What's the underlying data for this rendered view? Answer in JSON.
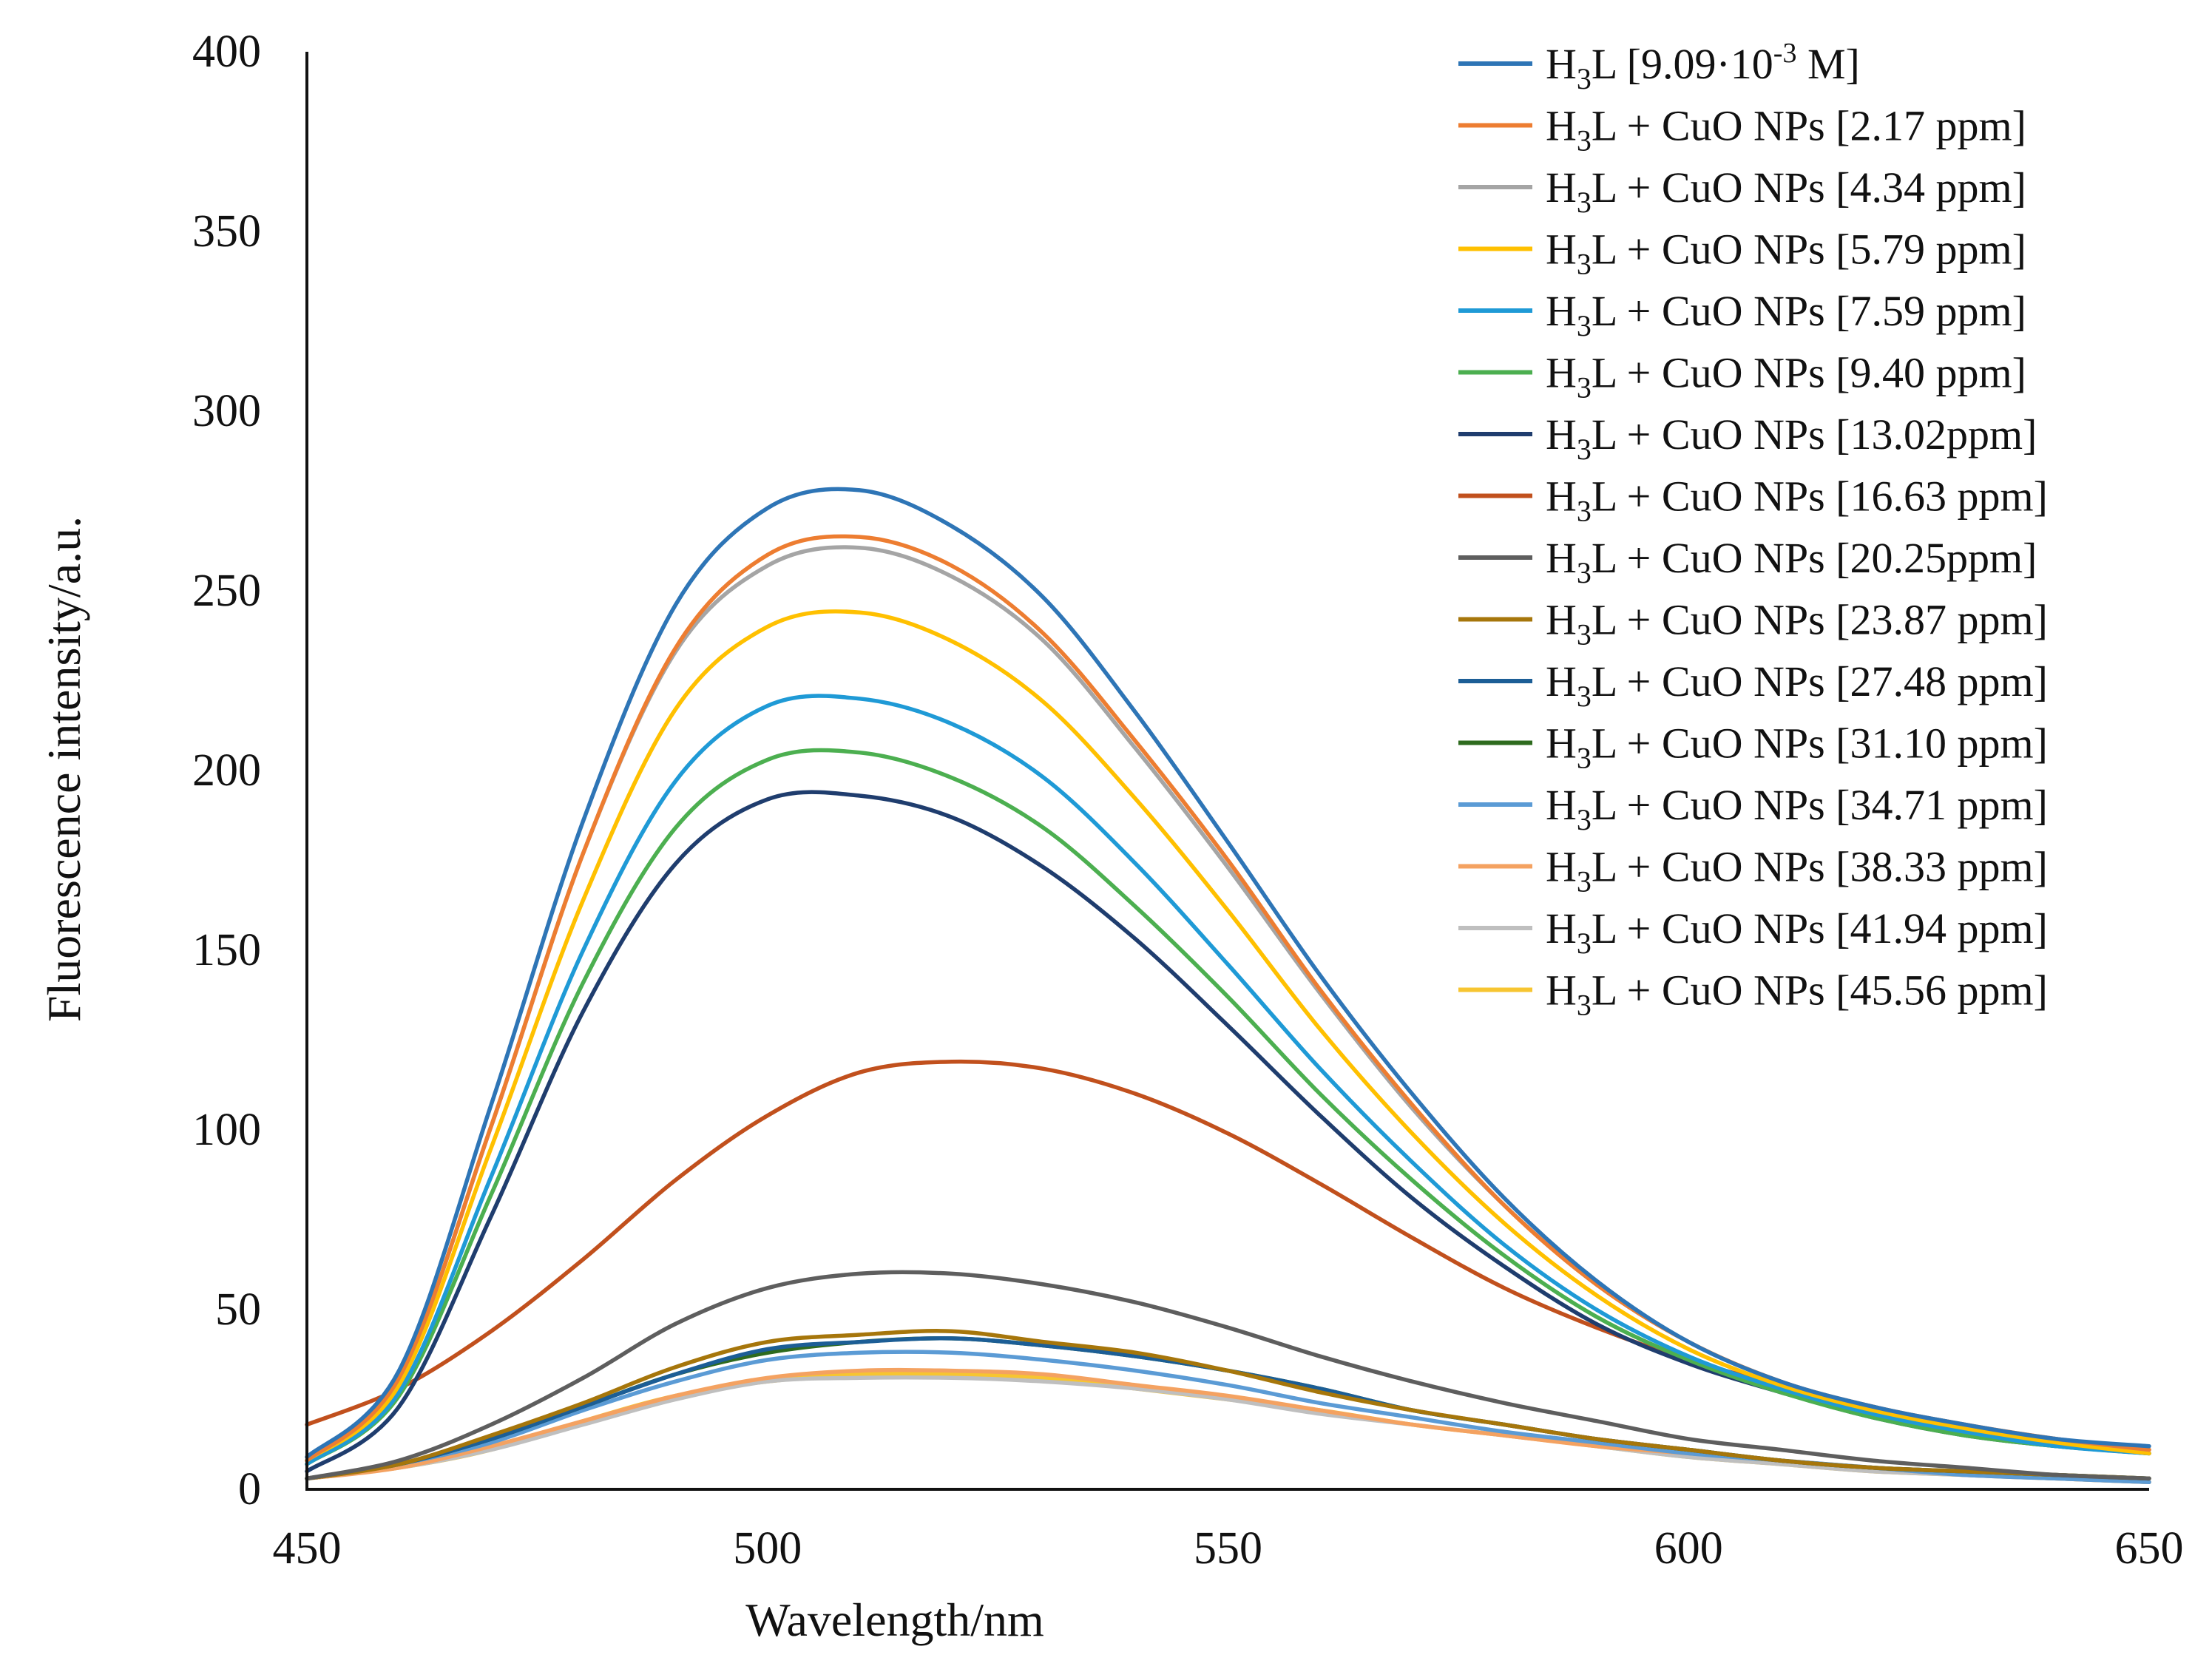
{
  "chart_data": {
    "type": "line",
    "title": "",
    "xlabel": "Wavelength/nm",
    "ylabel": "Fluorescence intensity/a.u.",
    "xlim": [
      450,
      650
    ],
    "ylim": [
      0,
      400
    ],
    "xticks": [
      450,
      500,
      550,
      600,
      650
    ],
    "yticks": [
      0,
      50,
      100,
      150,
      200,
      250,
      300,
      350,
      400
    ],
    "grid": false,
    "legend_position": "top-right",
    "x": [
      450,
      460,
      470,
      480,
      490,
      500,
      510,
      520,
      530,
      540,
      550,
      560,
      570,
      580,
      590,
      600,
      610,
      620,
      630,
      640,
      650
    ],
    "series": [
      {
        "name": "H3L [9.09·10-3 M]",
        "label_parts": [
          "H",
          "3",
          "L [9.09·10",
          "-3",
          " M]"
        ],
        "color": "#2E75B6",
        "values": [
          9,
          33,
          107,
          186,
          246,
          273,
          278,
          268,
          248,
          216,
          180,
          143,
          110,
          81,
          58,
          41,
          30,
          23,
          18,
          14,
          12
        ]
      },
      {
        "name": "H3L + CuO NPs [2.17 ppm]",
        "label_parts": [
          "H",
          "3",
          "L + CuO NPs [2.17 ppm]",
          "",
          ""
        ],
        "color": "#ED7D31",
        "values": [
          8,
          31,
          101,
          177,
          234,
          260,
          265,
          257,
          238,
          208,
          175,
          139,
          107,
          79,
          57,
          41,
          30,
          23,
          18,
          14,
          11
        ]
      },
      {
        "name": "H3L + CuO NPs [4.34 ppm]",
        "label_parts": [
          "H",
          "3",
          "L + CuO NPs [4.34 ppm]",
          "",
          ""
        ],
        "color": "#A5A5A5",
        "values": [
          8,
          31,
          101,
          177,
          233,
          257,
          262,
          254,
          236,
          206,
          173,
          138,
          106,
          79,
          57,
          41,
          30,
          23,
          18,
          14,
          11
        ]
      },
      {
        "name": "H3L + CuO NPs [5.79 ppm]",
        "label_parts": [
          "H",
          "3",
          "L + CuO NPs [5.79 ppm]",
          "",
          ""
        ],
        "color": "#FFC000",
        "values": [
          8,
          29,
          95,
          164,
          217,
          240,
          244,
          236,
          219,
          192,
          161,
          128,
          99,
          74,
          54,
          39,
          29,
          22,
          17,
          13,
          10
        ]
      },
      {
        "name": "H3L + CuO NPs [7.59 ppm]",
        "label_parts": [
          "H",
          "3",
          "L + CuO NPs [7.59 ppm]",
          "",
          ""
        ],
        "color": "#1F9AD6",
        "values": [
          7,
          27,
          87,
          150,
          197,
          218,
          220,
          213,
          198,
          174,
          146,
          117,
          91,
          68,
          50,
          37,
          28,
          21,
          16,
          12,
          10
        ]
      },
      {
        "name": "H3L + CuO NPs [9.40 ppm]",
        "label_parts": [
          "H",
          "3",
          "L + CuO NPs [9.40 ppm]",
          "",
          ""
        ],
        "color": "#4CAF50",
        "values": [
          7,
          26,
          82,
          141,
          184,
          203,
          205,
          198,
          184,
          162,
          137,
          110,
          86,
          65,
          48,
          36,
          27,
          20,
          15,
          12,
          10
        ]
      },
      {
        "name": "H3L + CuO NPs [13.02ppm]",
        "label_parts": [
          "H",
          "3",
          "L + CuO NPs [13.02ppm]",
          "",
          ""
        ],
        "color": "#1F3D6E",
        "values": [
          5,
          23,
          76,
          133,
          174,
          192,
          193,
          187,
          173,
          153,
          129,
          104,
          81,
          62,
          46,
          35,
          27,
          20,
          15,
          12,
          10
        ]
      },
      {
        "name": "H3L + CuO NPs [16.63 ppm]",
        "label_parts": [
          "H",
          "3",
          "L + CuO NPs [16.63 ppm]",
          "",
          ""
        ],
        "color": "#C1501D",
        "values": [
          18,
          28,
          44,
          64,
          86,
          104,
          116,
          119,
          117,
          110,
          99,
          85,
          70,
          56,
          45,
          36,
          29,
          23,
          17,
          13,
          10
        ]
      },
      {
        "name": "H3L + CuO NPs [20.25ppm]",
        "label_parts": [
          "H",
          "3",
          "L + CuO NPs [20.25ppm]",
          "",
          ""
        ],
        "color": "#5E5E5E",
        "values": [
          3,
          8,
          18,
          31,
          46,
          56,
          60,
          60,
          57,
          52,
          45,
          37,
          30,
          24,
          19,
          14,
          11,
          8,
          6,
          4,
          3
        ]
      },
      {
        "name": "H3L + CuO NPs [23.87 ppm]",
        "label_parts": [
          "H",
          "3",
          "L + CuO NPs [23.87 ppm]",
          "",
          ""
        ],
        "color": "#A6760B",
        "values": [
          3,
          7,
          15,
          24,
          34,
          41,
          43,
          44,
          41,
          38,
          33,
          27,
          22,
          18,
          14,
          11,
          8,
          6,
          5,
          4,
          3
        ]
      },
      {
        "name": "H3L + CuO NPs [27.48 ppm]",
        "label_parts": [
          "H",
          "3",
          "L + CuO NPs [27.48 ppm]",
          "",
          ""
        ],
        "color": "#1C5E96",
        "values": [
          3,
          7,
          14,
          23,
          32,
          39,
          41,
          42,
          40,
          37,
          33,
          28,
          22,
          18,
          14,
          11,
          8,
          6,
          5,
          4,
          3
        ]
      },
      {
        "name": "H3L + CuO NPs [31.10 ppm]",
        "label_parts": [
          "H",
          "3",
          "L + CuO NPs [31.10 ppm]",
          "",
          ""
        ],
        "color": "#2E6B1E",
        "values": [
          3,
          7,
          14,
          23,
          32,
          38,
          41,
          42,
          40,
          37,
          33,
          28,
          22,
          18,
          14,
          11,
          8,
          6,
          5,
          4,
          3
        ]
      },
      {
        "name": "H3L + CuO NPs [34.71 ppm]",
        "label_parts": [
          "H",
          "3",
          "L + CuO NPs [34.71 ppm]",
          "",
          ""
        ],
        "color": "#5B9BD5",
        "values": [
          3,
          7,
          13,
          22,
          30,
          36,
          38,
          38,
          36,
          33,
          29,
          24,
          20,
          16,
          13,
          10,
          8,
          6,
          4,
          3,
          2
        ]
      },
      {
        "name": "H3L + CuO NPs [38.33 ppm]",
        "label_parts": [
          "H",
          "3",
          "L + CuO NPs [38.33 ppm]",
          "",
          ""
        ],
        "color": "#F4A261",
        "values": [
          3,
          6,
          12,
          19,
          26,
          31,
          33,
          33,
          32,
          29,
          26,
          22,
          18,
          15,
          12,
          10,
          8,
          6,
          4,
          3,
          2
        ]
      },
      {
        "name": "H3L + CuO NPs [41.94 ppm]",
        "label_parts": [
          "H",
          "3",
          "L + CuO NPs [41.94 ppm]",
          "",
          ""
        ],
        "color": "#BFBFBF",
        "values": [
          3,
          6,
          11,
          18,
          25,
          30,
          31,
          31,
          30,
          28,
          25,
          21,
          18,
          15,
          12,
          9,
          7,
          5,
          4,
          3,
          2
        ]
      },
      {
        "name": "H3L + CuO NPs [45.56 ppm]",
        "label_parts": [
          "H",
          "3",
          "L + CuO NPs [45.56 ppm]",
          "",
          ""
        ],
        "color": "#F7C531",
        "values": [
          3,
          6,
          11,
          19,
          26,
          30,
          32,
          32,
          31,
          28,
          25,
          22,
          18,
          15,
          12,
          9,
          7,
          5,
          4,
          3,
          2
        ]
      }
    ]
  }
}
